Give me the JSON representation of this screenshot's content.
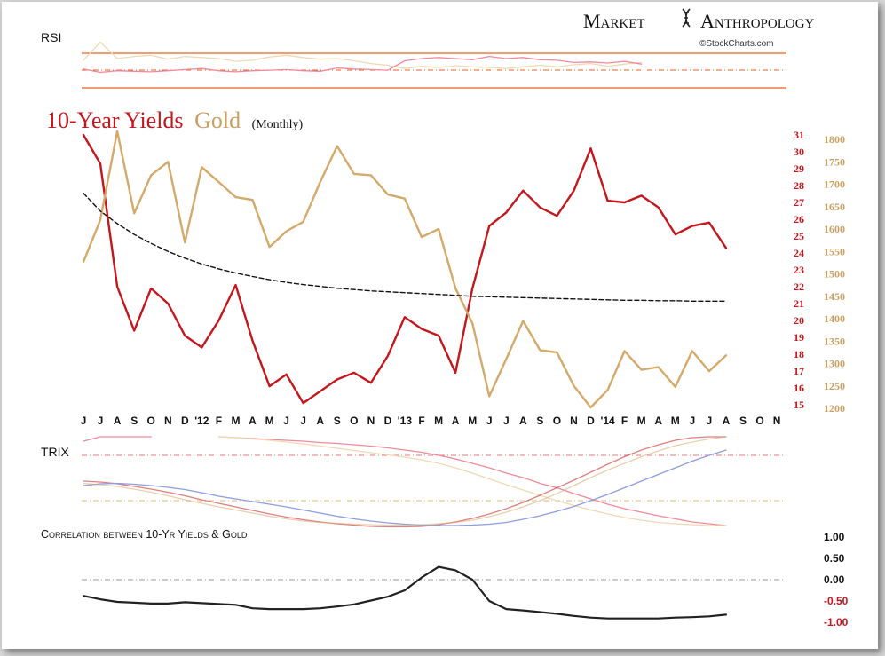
{
  "brand": {
    "name_left": "Market",
    "name_right": "Anthropology",
    "source": "©StockCharts.com"
  },
  "colors": {
    "yields": "#c4161c",
    "gold": "#d4aa6a",
    "yields_light": "#f08a9a",
    "gold_light": "#f0d9b5",
    "trix_blue": "#8c9de0",
    "rsi_band": "#e9611f",
    "axis_red": "#c4161c",
    "axis_gold": "#c9a060",
    "text": "#111111"
  },
  "chart_data": [
    {
      "type": "line",
      "panel": "rsi",
      "label": "RSI",
      "series": [
        {
          "color": "gold_light",
          "values": [
            55,
            88,
            58,
            62,
            64,
            57,
            62,
            60,
            58,
            53,
            55,
            61,
            64,
            60,
            57,
            58,
            54,
            49,
            46,
            40,
            44,
            42,
            45,
            43,
            42,
            40,
            43,
            46,
            43,
            47,
            49,
            44,
            48,
            51
          ]
        },
        {
          "color": "yields_light",
          "values": [
            39,
            33,
            36,
            35,
            34,
            36,
            38,
            40,
            36,
            34,
            36,
            37,
            38,
            36,
            35,
            41,
            39,
            38,
            37,
            54,
            58,
            60,
            58,
            56,
            62,
            58,
            60,
            56,
            55,
            51,
            52,
            50,
            53,
            48
          ]
        }
      ]
    },
    {
      "type": "line",
      "title_yields": "10-Year Yields",
      "title_gold": "Gold",
      "title_suffix": "(Monthly)",
      "x_tick_labels": [
        "J",
        "J",
        "A",
        "S",
        "O",
        "N",
        "D",
        "'12",
        "F",
        "M",
        "A",
        "M",
        "J",
        "J",
        "A",
        "S",
        "O",
        "N",
        "D",
        "'13",
        "F",
        "M",
        "A",
        "M",
        "J",
        "J",
        "A",
        "S",
        "O",
        "N",
        "D",
        "'14",
        "F",
        "M",
        "A",
        "M",
        "J",
        "J",
        "A",
        "S",
        "O",
        "N"
      ],
      "y_left_ticks": [
        31,
        30,
        29,
        28,
        27,
        26,
        25,
        24,
        23,
        22,
        21,
        20,
        19,
        18,
        17,
        16,
        15
      ],
      "y_right_ticks": [
        1800,
        1750,
        1700,
        1650,
        1600,
        1550,
        1500,
        1450,
        1400,
        1350,
        1300,
        1250,
        1200
      ],
      "series": [
        {
          "name": "10-Year Yields",
          "axis": "left",
          "color": "yields",
          "values": [
            31.0,
            29.3,
            22.0,
            19.4,
            21.9,
            21.0,
            19.1,
            18.4,
            20.0,
            22.1,
            18.8,
            16.1,
            16.8,
            15.1,
            15.8,
            16.5,
            16.9,
            16.3,
            17.9,
            20.2,
            19.5,
            19.1,
            16.9,
            21.9,
            25.6,
            26.4,
            27.7,
            26.7,
            26.2,
            27.7,
            30.2,
            27.1,
            27.0,
            27.4,
            26.7,
            25.1,
            25.6,
            25.8,
            24.3
          ]
        },
        {
          "name": "Gold",
          "axis": "right",
          "color": "gold",
          "values": [
            1527,
            1620,
            1818,
            1635,
            1720,
            1750,
            1570,
            1738,
            1705,
            1671,
            1665,
            1560,
            1595,
            1616,
            1705,
            1785,
            1723,
            1720,
            1677,
            1668,
            1582,
            1600,
            1468,
            1390,
            1227,
            1310,
            1395,
            1330,
            1325,
            1250,
            1202,
            1241,
            1328,
            1286,
            1292,
            1248,
            1328,
            1283,
            1318
          ]
        },
        {
          "style": "dashed",
          "axis": "right",
          "color": "text",
          "values": [
            1680,
            1640,
            1612,
            1588,
            1568,
            1550,
            1535,
            1522,
            1511,
            1502,
            1494,
            1487,
            1481,
            1476,
            1472,
            1468,
            1465,
            1462,
            1460,
            1458,
            1456,
            1454,
            1452,
            1450,
            1449,
            1448,
            1447,
            1446,
            1445,
            1444,
            1443,
            1442,
            1441,
            1441,
            1440,
            1440,
            1439,
            1439,
            1439
          ]
        }
      ]
    },
    {
      "type": "line",
      "panel": "trix",
      "label": "TRIX",
      "series": [
        {
          "color": "yields_light",
          "values": [
            0.9,
            1.0,
            1.0,
            1.0,
            1.0,
            null,
            null,
            null,
            1.0,
            0.98,
            0.96,
            0.94,
            0.92,
            0.9,
            0.87,
            0.85,
            0.82,
            0.79,
            0.75,
            0.7,
            0.65,
            0.58,
            0.5,
            0.4,
            0.3,
            0.18,
            0.08,
            -0.05,
            -0.15,
            -0.28,
            -0.4,
            -0.52,
            -0.62,
            -0.7,
            -0.78,
            -0.85,
            -0.92,
            -0.96,
            -1.0
          ]
        },
        {
          "color": "gold_light",
          "values": [
            null,
            null,
            null,
            null,
            null,
            null,
            null,
            null,
            1.0,
            0.98,
            0.95,
            0.92,
            0.88,
            0.84,
            0.79,
            0.74,
            0.69,
            0.64,
            0.59,
            0.54,
            0.48,
            0.4,
            0.3,
            0.18,
            0.05,
            -0.08,
            -0.2,
            -0.32,
            -0.44,
            -0.55,
            -0.65,
            -0.74,
            -0.82,
            -0.88,
            -0.93,
            -0.96,
            -0.98,
            -1.0,
            -1.0
          ]
        },
        {
          "color": "yields",
          "light": true,
          "values": [
            0.0,
            -0.02,
            -0.06,
            -0.12,
            -0.18,
            -0.25,
            -0.33,
            -0.42,
            -0.5,
            -0.58,
            -0.66,
            -0.74,
            -0.81,
            -0.87,
            -0.92,
            -0.96,
            -0.99,
            -1.02,
            -1.03,
            -1.03,
            -1.02,
            -0.98,
            -0.92,
            -0.84,
            -0.74,
            -0.62,
            -0.48,
            -0.32,
            -0.15,
            0.02,
            0.2,
            0.38,
            0.55,
            0.7,
            0.82,
            0.92,
            0.98,
            1.0,
            1.0
          ]
        },
        {
          "color": "trix_blue",
          "values": [
            -0.1,
            -0.06,
            -0.05,
            -0.07,
            -0.1,
            -0.14,
            -0.19,
            -0.26,
            -0.34,
            -0.4,
            -0.46,
            -0.52,
            -0.58,
            -0.65,
            -0.72,
            -0.79,
            -0.85,
            -0.9,
            -0.94,
            -0.97,
            -0.99,
            -1.0,
            -1.0,
            -0.99,
            -0.97,
            -0.93,
            -0.86,
            -0.78,
            -0.68,
            -0.57,
            -0.44,
            -0.3,
            -0.15,
            0.0,
            0.15,
            0.3,
            0.45,
            0.58,
            0.7
          ]
        },
        {
          "color": "gold",
          "light": true,
          "values": [
            -0.05,
            -0.08,
            -0.12,
            -0.18,
            -0.25,
            -0.33,
            -0.42,
            -0.5,
            -0.58,
            -0.65,
            -0.72,
            -0.79,
            -0.85,
            -0.9,
            -0.93,
            -0.95,
            -0.97,
            -0.98,
            -0.99,
            -0.99,
            -0.98,
            -0.96,
            -0.93,
            -0.88,
            -0.8,
            -0.7,
            -0.58,
            -0.44,
            -0.28,
            -0.1,
            0.08,
            0.25,
            0.4,
            0.55,
            0.68,
            0.8,
            0.88,
            0.95,
            1.0
          ]
        }
      ]
    },
    {
      "type": "line",
      "panel": "correlation",
      "title": "Correlation between 10-Yr Yields & Gold",
      "y_ticks": [
        "1.00",
        "0.50",
        "0.00",
        "-0.50",
        "-1.00"
      ],
      "series": [
        {
          "color": "text",
          "values": [
            -0.38,
            -0.46,
            -0.52,
            -0.54,
            -0.56,
            -0.56,
            -0.53,
            -0.55,
            -0.57,
            -0.59,
            -0.67,
            -0.69,
            -0.69,
            -0.69,
            -0.67,
            -0.63,
            -0.58,
            -0.49,
            -0.4,
            -0.25,
            0.05,
            0.3,
            0.22,
            0.0,
            -0.5,
            -0.69,
            -0.72,
            -0.76,
            -0.8,
            -0.85,
            -0.89,
            -0.91,
            -0.91,
            -0.91,
            -0.91,
            -0.89,
            -0.88,
            -0.86,
            -0.82
          ]
        }
      ]
    }
  ]
}
